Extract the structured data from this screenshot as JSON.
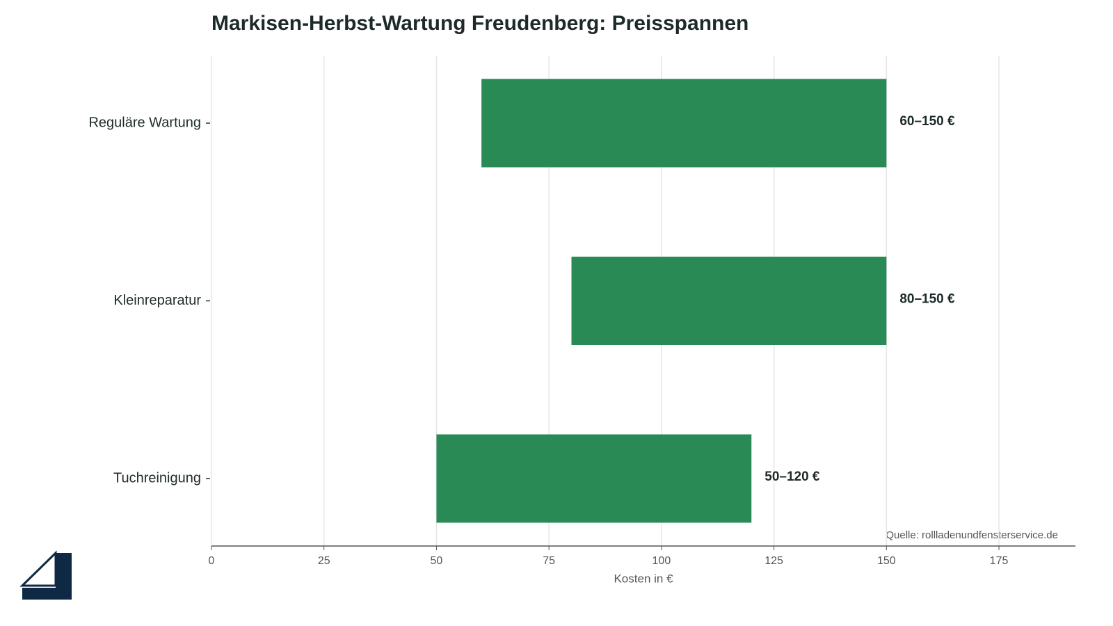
{
  "chart_data": {
    "type": "range-bar",
    "title": "Markisen-Herbst-Wartung Freudenberg: Preisspannen",
    "xlabel": "Kosten in €",
    "source": "Quelle: rollladenundfensterservice.de",
    "categories": [
      "Reguläre Wartung",
      "Kleinreparatur",
      "Tuchreinigung"
    ],
    "low": [
      60,
      80,
      50
    ],
    "high": [
      150,
      150,
      120
    ],
    "value_labels": [
      "60–150 €",
      "80–150 €",
      "50–120 €"
    ],
    "color": "#2a8a55",
    "xlim": [
      0,
      192
    ],
    "xticks": [
      0,
      25,
      50,
      75,
      100,
      125,
      150,
      175
    ],
    "grid": true
  }
}
